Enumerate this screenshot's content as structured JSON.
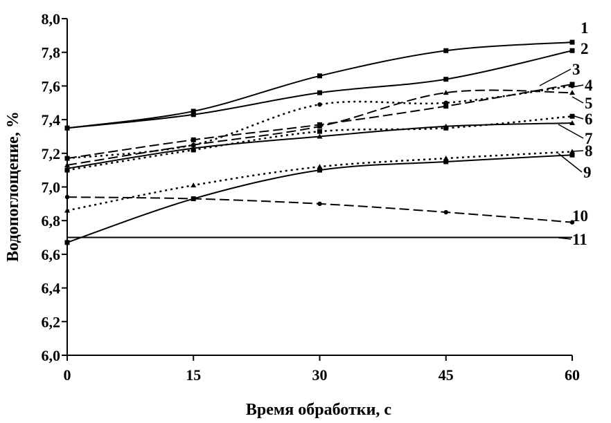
{
  "chart_data": {
    "type": "line",
    "xlabel": "Время обработки, с",
    "ylabel": "Водопоглощение, %",
    "xlim": [
      0,
      60
    ],
    "ylim": [
      6.0,
      8.0
    ],
    "x_ticks": [
      "0",
      "15",
      "30",
      "45",
      "60"
    ],
    "y_ticks": [
      "6,0",
      "6,2",
      "6,4",
      "6,6",
      "6,8",
      "7,0",
      "7,2",
      "7,4",
      "7,6",
      "7,8",
      "8,0"
    ],
    "grid": false,
    "x": [
      0,
      15,
      30,
      45,
      60
    ],
    "series": [
      {
        "name": "1",
        "values": [
          7.35,
          7.45,
          7.66,
          7.81,
          7.86
        ],
        "line": "solid",
        "marker": "square"
      },
      {
        "name": "2",
        "values": [
          7.35,
          7.43,
          7.56,
          7.64,
          7.81
        ],
        "line": "solid",
        "marker": "square"
      },
      {
        "name": "3",
        "values": [
          7.17,
          7.28,
          7.37,
          7.48,
          7.61
        ],
        "line": "dashed",
        "marker": "square"
      },
      {
        "name": "4",
        "values": [
          7.17,
          7.25,
          7.49,
          7.5,
          7.6
        ],
        "line": "dotted",
        "marker": "circle"
      },
      {
        "name": "5",
        "values": [
          7.13,
          7.25,
          7.36,
          7.56,
          7.56
        ],
        "line": "dashed",
        "marker": "triangle"
      },
      {
        "name": "6",
        "values": [
          7.1,
          7.22,
          7.33,
          7.35,
          7.42
        ],
        "line": "dotted",
        "marker": "square"
      },
      {
        "name": "7",
        "values": [
          7.11,
          7.23,
          7.3,
          7.36,
          7.38
        ],
        "line": "solid",
        "marker": "triangle"
      },
      {
        "name": "8",
        "values": [
          6.86,
          7.01,
          7.12,
          7.17,
          7.21
        ],
        "line": "dotted",
        "marker": "triangle"
      },
      {
        "name": "9",
        "values": [
          6.67,
          6.93,
          7.1,
          7.15,
          7.19
        ],
        "line": "solid",
        "marker": "square"
      },
      {
        "name": "10",
        "values": [
          6.94,
          6.93,
          6.9,
          6.85,
          6.79
        ],
        "line": "dashed",
        "marker": "circle"
      },
      {
        "name": "11",
        "values": [
          6.7,
          6.7,
          6.7,
          6.7,
          6.7
        ],
        "line": "solid",
        "marker": "none"
      }
    ]
  }
}
